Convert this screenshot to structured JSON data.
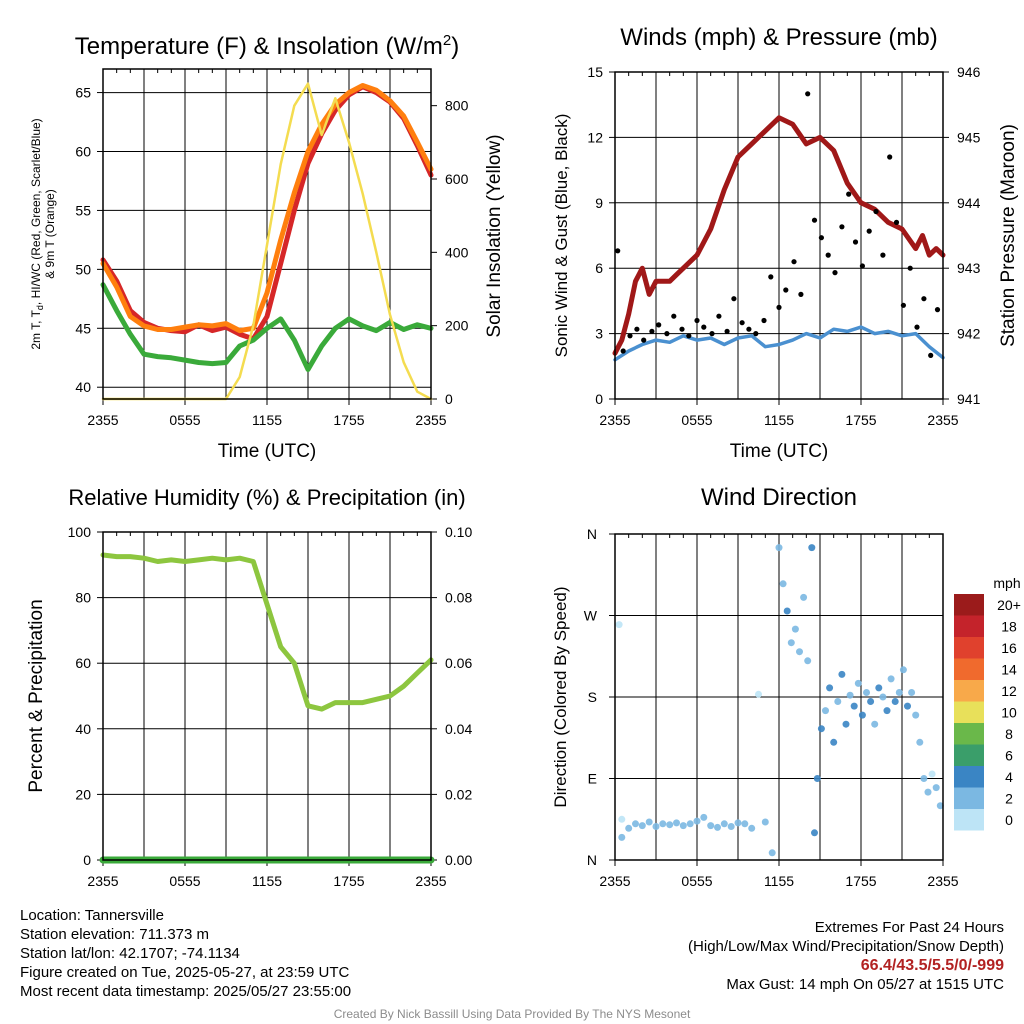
{
  "chart_data": [
    {
      "type": "line",
      "title": "Temperature (F) & Insolation (W/m",
      "title_sup": "2",
      "title_end": ")",
      "xlabel": "Time (UTC)",
      "ylabel_left": [
        "2m T, T",
        "d",
        ", HI/WC (Red, Green, Scarlet/Blue)",
        "& 9m T (Orange)"
      ],
      "ylabel_right": "Solar Insolation (Yellow)",
      "x_tick_labels": [
        "2355",
        "0555",
        "1155",
        "1755",
        "2355"
      ],
      "ylim_left": [
        39,
        67
      ],
      "yticks_left": [
        40,
        45,
        50,
        55,
        60,
        65
      ],
      "ylim_right": [
        0,
        900
      ],
      "yticks_right": [
        0,
        200,
        400,
        600,
        800
      ],
      "grid": true,
      "series": [
        {
          "name": "2m T",
          "color": "#d62728",
          "axis": "left",
          "x": [
            0,
            1,
            2,
            3,
            4,
            5,
            6,
            7,
            8,
            9,
            10,
            11,
            12,
            13,
            14,
            15,
            16,
            17,
            18,
            19,
            20,
            21,
            22,
            23,
            24
          ],
          "values": [
            50.8,
            49,
            46.5,
            45.5,
            45,
            44.8,
            44.7,
            45.3,
            44.8,
            45.1,
            44.5,
            44.1,
            46,
            50.5,
            55,
            59,
            61.5,
            63.5,
            64.8,
            65.5,
            65,
            64.2,
            62.8,
            60.5,
            58
          ]
        },
        {
          "name": "9m T",
          "color": "#ff7f0e",
          "axis": "left",
          "x": [
            0,
            1,
            2,
            3,
            4,
            5,
            6,
            7,
            8,
            9,
            10,
            11,
            12,
            13,
            14,
            15,
            16,
            17,
            18,
            19,
            20,
            21,
            22,
            23,
            24
          ],
          "values": [
            50.5,
            48.5,
            46,
            45.2,
            44.9,
            44.9,
            45.1,
            45.3,
            45.2,
            45.4,
            44.8,
            45,
            48,
            52.5,
            56.5,
            60,
            62.3,
            64,
            65,
            65.6,
            65.2,
            64.3,
            63,
            60.8,
            58.5
          ]
        },
        {
          "name": "Td",
          "color": "#3aaa3a",
          "axis": "left",
          "x": [
            0,
            1,
            2,
            3,
            4,
            5,
            6,
            7,
            8,
            9,
            10,
            11,
            12,
            13,
            14,
            15,
            16,
            17,
            18,
            19,
            20,
            21,
            22,
            23,
            24
          ],
          "values": [
            48.7,
            46.5,
            44.5,
            42.8,
            42.6,
            42.5,
            42.3,
            42.1,
            42,
            42.1,
            43.5,
            44,
            45,
            45.8,
            44,
            41.5,
            43.5,
            45,
            45.8,
            45.2,
            44.8,
            45.5,
            44.9,
            45.3,
            45
          ]
        },
        {
          "name": "Insolation",
          "color": "#f4dc50",
          "axis": "right",
          "x": [
            0,
            1,
            2,
            3,
            4,
            5,
            6,
            7,
            8,
            9,
            10,
            11,
            12,
            13,
            14,
            15,
            16,
            17,
            18,
            19,
            20,
            21,
            22,
            23,
            24
          ],
          "values": [
            0,
            0,
            0,
            0,
            0,
            0,
            0,
            0,
            0,
            0,
            60,
            200,
            420,
            640,
            800,
            860,
            720,
            820,
            700,
            560,
            400,
            230,
            100,
            20,
            0
          ]
        }
      ]
    },
    {
      "type": "line",
      "title": "Winds (mph) & Pressure (mb)",
      "xlabel": "Time (UTC)",
      "ylabel_left": "Sonic Wind & Gust (Blue, Black)",
      "ylabel_right": "Station Pressure (Maroon)",
      "x_tick_labels": [
        "2355",
        "0555",
        "1155",
        "1755",
        "2355"
      ],
      "ylim_left": [
        0,
        15
      ],
      "yticks_left": [
        0,
        3,
        6,
        9,
        12,
        15
      ],
      "ylim_right": [
        941,
        946
      ],
      "yticks_right": [
        941,
        942,
        943,
        944,
        945,
        946
      ],
      "grid": true,
      "series": [
        {
          "name": "Pressure",
          "color": "#a01818",
          "axis": "right",
          "x": [
            0,
            0.5,
            1,
            1.5,
            2,
            2.5,
            3,
            3.5,
            4,
            4.5,
            5,
            6,
            7,
            8,
            9,
            10,
            11,
            12,
            13,
            14,
            15,
            16,
            17,
            18,
            19,
            20,
            21,
            22,
            22.5,
            23,
            23.5,
            24
          ],
          "values": [
            941.7,
            941.9,
            942.3,
            942.8,
            943.0,
            942.6,
            942.8,
            942.8,
            942.8,
            942.9,
            943.0,
            943.2,
            943.6,
            944.2,
            944.7,
            944.9,
            945.1,
            945.3,
            945.2,
            944.9,
            945.0,
            944.8,
            944.3,
            944.0,
            943.9,
            943.7,
            943.6,
            943.3,
            943.5,
            943.2,
            943.3,
            943.2
          ]
        },
        {
          "name": "Wind",
          "color": "#4a90d0",
          "axis": "left",
          "x": [
            0,
            1,
            2,
            3,
            4,
            5,
            6,
            7,
            8,
            9,
            10,
            11,
            12,
            13,
            14,
            15,
            16,
            17,
            18,
            19,
            20,
            21,
            22,
            23,
            24
          ],
          "values": [
            1.8,
            2.2,
            2.5,
            2.7,
            2.6,
            2.9,
            2.7,
            2.8,
            2.5,
            2.8,
            2.9,
            2.4,
            2.5,
            2.7,
            3.0,
            2.8,
            3.2,
            3.1,
            3.3,
            3.0,
            3.1,
            2.9,
            3.0,
            2.4,
            1.9
          ]
        },
        {
          "name": "Gust",
          "color": "#000000",
          "axis": "left",
          "marker": "dot",
          "x": [
            0.2,
            0.6,
            1.1,
            1.6,
            2.1,
            2.7,
            3.2,
            3.8,
            4.3,
            4.9,
            5.4,
            6.0,
            6.5,
            7.1,
            7.6,
            8.2,
            8.7,
            9.3,
            9.8,
            10.3,
            10.9,
            11.4,
            12.0,
            12.5,
            13.1,
            13.6,
            14.1,
            14.6,
            15.1,
            15.6,
            16.1,
            16.6,
            17.1,
            17.6,
            18.1,
            18.6,
            19.1,
            19.6,
            20.1,
            20.6,
            21.1,
            21.6,
            22.1,
            22.6,
            23.1,
            23.6
          ],
          "values": [
            6.8,
            2.2,
            2.9,
            3.2,
            2.7,
            3.1,
            3.4,
            3.0,
            3.8,
            3.2,
            2.9,
            3.6,
            3.3,
            3.0,
            3.8,
            3.1,
            4.6,
            3.5,
            3.2,
            3.0,
            3.6,
            5.6,
            4.2,
            5.0,
            6.3,
            4.8,
            14.0,
            8.2,
            7.4,
            6.6,
            5.8,
            7.9,
            9.4,
            7.2,
            6.1,
            7.7,
            8.6,
            6.6,
            11.1,
            8.1,
            4.3,
            6.0,
            3.3,
            4.6,
            2.0,
            4.1
          ]
        }
      ]
    },
    {
      "type": "line",
      "title": "Relative Humidity (%) & Precipitation (in)",
      "xlabel": "",
      "ylabel_left": "Percent & Precipitation",
      "x_tick_labels": [
        "2355",
        "0555",
        "1155",
        "1755",
        "2355"
      ],
      "ylim_left": [
        0,
        100
      ],
      "yticks_left": [
        0,
        20,
        40,
        60,
        80,
        100
      ],
      "ylim_right": [
        0,
        0.1
      ],
      "yticks_right": [
        "0.00",
        "0.02",
        "0.04",
        "0.06",
        "0.08",
        "0.10"
      ],
      "grid": true,
      "series": [
        {
          "name": "RH",
          "color": "#8dc63f",
          "axis": "left",
          "x": [
            0,
            1,
            2,
            3,
            4,
            5,
            6,
            7,
            8,
            9,
            10,
            11,
            12,
            13,
            14,
            15,
            16,
            17,
            18,
            19,
            20,
            21,
            22,
            23,
            24
          ],
          "values": [
            93,
            92.5,
            92.5,
            92,
            91,
            91.5,
            91,
            91.5,
            92,
            91.5,
            92,
            91,
            78,
            65,
            60,
            47,
            46,
            48,
            48,
            48,
            49,
            50,
            53,
            57,
            61
          ]
        },
        {
          "name": "Precipitation",
          "color": "#3aaa3a",
          "axis": "right",
          "x": [
            0,
            24
          ],
          "values": [
            0,
            0
          ]
        }
      ]
    },
    {
      "type": "scatter",
      "title": "Wind Direction",
      "xlabel": "",
      "ylabel_left": "Direction (Colored By Speed)",
      "x_tick_labels": [
        "2355",
        "0555",
        "1155",
        "1755",
        "2355"
      ],
      "y_tick_labels": [
        "N",
        "E",
        "S",
        "W",
        "N"
      ],
      "ylim_left": [
        0,
        360
      ],
      "grid": true,
      "colorbar": {
        "title": "mph",
        "labels": [
          "20+",
          "18",
          "16",
          "14",
          "12",
          "10",
          "8",
          "6",
          "4",
          "2",
          "0"
        ],
        "colors": [
          "#9b1b1b",
          "#c4232b",
          "#e0412d",
          "#f06a2d",
          "#f8a94a",
          "#e8e05a",
          "#6ab84a",
          "#3a9e6a",
          "#3a85c4",
          "#7bb8e2",
          "#bde4f6"
        ]
      },
      "points": [
        {
          "x": 0.3,
          "dir": 260,
          "spd": 1
        },
        {
          "x": 0.5,
          "dir": 45,
          "spd": 1
        },
        {
          "x": 0.5,
          "dir": 25,
          "spd": 2
        },
        {
          "x": 1.0,
          "dir": 35,
          "spd": 2
        },
        {
          "x": 1.5,
          "dir": 40,
          "spd": 3
        },
        {
          "x": 2.0,
          "dir": 38,
          "spd": 2
        },
        {
          "x": 2.5,
          "dir": 42,
          "spd": 3
        },
        {
          "x": 3.0,
          "dir": 37,
          "spd": 2
        },
        {
          "x": 3.5,
          "dir": 40,
          "spd": 3
        },
        {
          "x": 4.0,
          "dir": 39,
          "spd": 2
        },
        {
          "x": 4.5,
          "dir": 41,
          "spd": 3
        },
        {
          "x": 5.0,
          "dir": 38,
          "spd": 2
        },
        {
          "x": 5.5,
          "dir": 40,
          "spd": 3
        },
        {
          "x": 6.0,
          "dir": 43,
          "spd": 2
        },
        {
          "x": 6.5,
          "dir": 47,
          "spd": 3
        },
        {
          "x": 7.0,
          "dir": 38,
          "spd": 3
        },
        {
          "x": 7.5,
          "dir": 36,
          "spd": 2
        },
        {
          "x": 8.0,
          "dir": 40,
          "spd": 3
        },
        {
          "x": 8.5,
          "dir": 37,
          "spd": 2
        },
        {
          "x": 9.0,
          "dir": 41,
          "spd": 3
        },
        {
          "x": 9.5,
          "dir": 40,
          "spd": 2
        },
        {
          "x": 10.0,
          "dir": 35,
          "spd": 2
        },
        {
          "x": 10.5,
          "dir": 183,
          "spd": 1
        },
        {
          "x": 11.0,
          "dir": 42,
          "spd": 3
        },
        {
          "x": 11.5,
          "dir": 8,
          "spd": 3
        },
        {
          "x": 12.0,
          "dir": 345,
          "spd": 3
        },
        {
          "x": 12.3,
          "dir": 305,
          "spd": 3
        },
        {
          "x": 12.6,
          "dir": 275,
          "spd": 4
        },
        {
          "x": 12.9,
          "dir": 240,
          "spd": 3
        },
        {
          "x": 13.2,
          "dir": 255,
          "spd": 3
        },
        {
          "x": 13.5,
          "dir": 230,
          "spd": 3
        },
        {
          "x": 13.8,
          "dir": 290,
          "spd": 3
        },
        {
          "x": 14.1,
          "dir": 220,
          "spd": 3
        },
        {
          "x": 14.4,
          "dir": 345,
          "spd": 4
        },
        {
          "x": 14.6,
          "dir": 30,
          "spd": 4
        },
        {
          "x": 14.8,
          "dir": 90,
          "spd": 4
        },
        {
          "x": 15.1,
          "dir": 145,
          "spd": 4
        },
        {
          "x": 15.4,
          "dir": 165,
          "spd": 3
        },
        {
          "x": 15.7,
          "dir": 190,
          "spd": 4
        },
        {
          "x": 16.0,
          "dir": 130,
          "spd": 4
        },
        {
          "x": 16.3,
          "dir": 175,
          "spd": 3
        },
        {
          "x": 16.6,
          "dir": 205,
          "spd": 4
        },
        {
          "x": 16.9,
          "dir": 150,
          "spd": 4
        },
        {
          "x": 17.2,
          "dir": 182,
          "spd": 3
        },
        {
          "x": 17.5,
          "dir": 170,
          "spd": 4
        },
        {
          "x": 17.8,
          "dir": 195,
          "spd": 3
        },
        {
          "x": 18.1,
          "dir": 160,
          "spd": 4
        },
        {
          "x": 18.4,
          "dir": 185,
          "spd": 3
        },
        {
          "x": 18.7,
          "dir": 175,
          "spd": 4
        },
        {
          "x": 19.0,
          "dir": 150,
          "spd": 3
        },
        {
          "x": 19.3,
          "dir": 190,
          "spd": 4
        },
        {
          "x": 19.6,
          "dir": 180,
          "spd": 3
        },
        {
          "x": 19.9,
          "dir": 165,
          "spd": 4
        },
        {
          "x": 20.2,
          "dir": 200,
          "spd": 3
        },
        {
          "x": 20.5,
          "dir": 175,
          "spd": 4
        },
        {
          "x": 20.8,
          "dir": 185,
          "spd": 3
        },
        {
          "x": 21.1,
          "dir": 210,
          "spd": 3
        },
        {
          "x": 21.4,
          "dir": 170,
          "spd": 4
        },
        {
          "x": 21.7,
          "dir": 185,
          "spd": 3
        },
        {
          "x": 22.0,
          "dir": 160,
          "spd": 3
        },
        {
          "x": 22.3,
          "dir": 130,
          "spd": 2
        },
        {
          "x": 22.6,
          "dir": 90,
          "spd": 2
        },
        {
          "x": 22.9,
          "dir": 75,
          "spd": 2
        },
        {
          "x": 23.2,
          "dir": 95,
          "spd": 1
        },
        {
          "x": 23.5,
          "dir": 80,
          "spd": 2
        },
        {
          "x": 23.8,
          "dir": 60,
          "spd": 2
        }
      ]
    }
  ],
  "info": {
    "location": "Location: Tannersville",
    "elevation": "Station elevation: 711.373 m",
    "latlon": "Station lat/lon: 42.1707; -74.1134",
    "created": "Figure created on Tue, 2025-05-27, at 23:59 UTC",
    "recent": "Most recent data timestamp: 2025/05/27 23:55:00"
  },
  "extremes": {
    "title": "Extremes For Past 24 Hours",
    "subtitle": "(High/Low/Max Wind/Precipitation/Snow Depth)",
    "values": "66.4/43.5/5.5/0/-999",
    "gust": "Max Gust: 14 mph On 05/27 at 1515 UTC"
  },
  "credit": "Created By Nick Bassill Using Data Provided By The NYS Mesonet",
  "colors": {
    "maroon": "#a01818",
    "blue": "#4a90d0",
    "green": "#3aaa3a",
    "yellow": "#f4dc50"
  }
}
